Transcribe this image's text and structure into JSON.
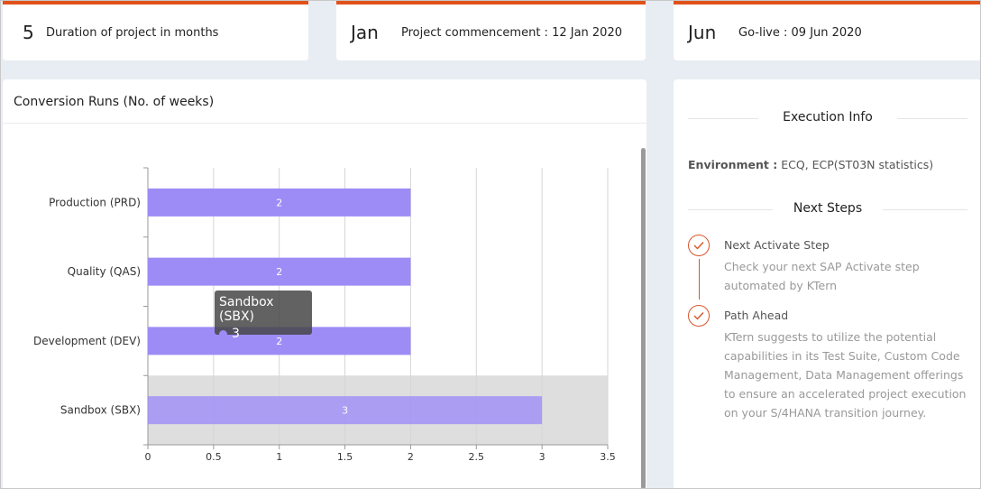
{
  "kpis": [
    {
      "value": "5",
      "label": "Duration of project in months"
    },
    {
      "value": "Jan",
      "label": "Project commencement : 12 Jan 2020"
    },
    {
      "value": "Jun",
      "label": "Go-live : 09 Jun 2020"
    }
  ],
  "chart_panel": {
    "title": "Conversion Runs (No. of weeks)"
  },
  "chart_data": {
    "type": "bar",
    "orientation": "horizontal",
    "categories": [
      "Production (PRD)",
      "Quality (QAS)",
      "Development (DEV)",
      "Sandbox (SBX)"
    ],
    "values": [
      2,
      2,
      2,
      3
    ],
    "xlim": [
      0,
      3.5
    ],
    "xticks": [
      "0",
      "0.5",
      "1",
      "1.5",
      "2",
      "2.5",
      "3",
      "3.5"
    ],
    "grid": true,
    "bar_color": "#9d8cf6",
    "highlighted_category": "Sandbox (SBX)",
    "tooltip": {
      "title": "Sandbox (SBX)",
      "value": "3"
    }
  },
  "exec_panel": {
    "heading": "Execution Info",
    "environment_label": "Environment :",
    "environment_value": "ECQ, ECP(ST03N statistics)",
    "next_steps_heading": "Next Steps",
    "steps": [
      {
        "title": "Next Activate Step",
        "desc": "Check your next SAP Activate step automated by KTern",
        "icon": "check-icon"
      },
      {
        "title": "Path Ahead",
        "desc": "KTern suggests to utilize the potential capabilities in its Test Suite, Custom Code Management, Data Management offerings to ensure an accelerated project execution on your S/4HANA transition journey.",
        "icon": "check-icon"
      }
    ]
  },
  "colors": {
    "accent": "#e0521a",
    "bar": "#9d8cf6",
    "step": "#d9542a"
  }
}
